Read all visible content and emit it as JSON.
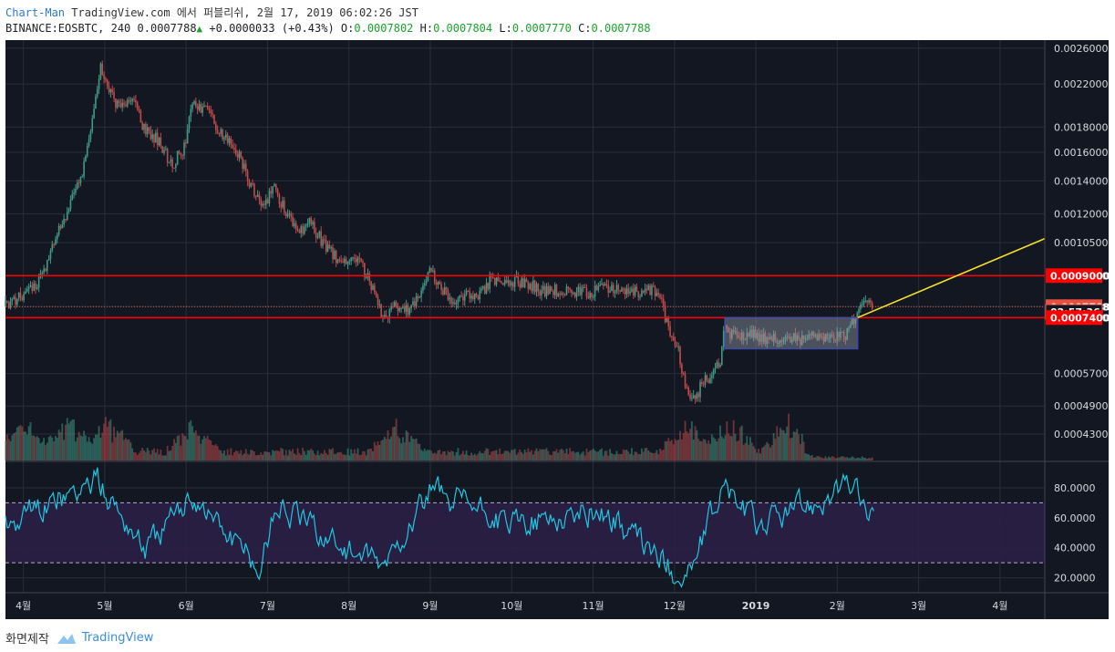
{
  "header": {
    "author": "Chart-Man",
    "published_text": "TradingView.com 에서 퍼블리쉬, 2월 17, 2019 06:02:26 JST",
    "symbol": "BINANCE:EOSBTC, 240",
    "last": "0.0007788",
    "change": "+0.0000033 (+0.43%)",
    "o_label": "O:",
    "o": "0.0007802",
    "h_label": "H:",
    "h": "0.0007804",
    "l_label": "L:",
    "l": "0.0007770",
    "c_label": "C:",
    "c": "0.0007788"
  },
  "footer": {
    "text": "화면제작",
    "brand": "TradingView"
  },
  "colors": {
    "background": "#131722",
    "grid": "#2a2e39",
    "up": "#3e9a85",
    "down": "#c14a4a",
    "resistance": "#ff0000",
    "trendline": "#f5e12a",
    "rsi": "#1fc7e0",
    "rsi_band": "#2b1f45",
    "box_fill": "#8f9aa6",
    "box_border": "#3d4ba8"
  },
  "chart_data": [
    {
      "type": "candlestick",
      "symbol": "BINANCE:EOSBTC",
      "interval": "240",
      "y_scale": "log",
      "y_ticks": [
        "0.0026000",
        "0.0022000",
        "0.0018000",
        "0.0016000",
        "0.0014000",
        "0.0012000",
        "0.0010500",
        "0.0009000",
        "0.0007788",
        "0.0007400",
        "0.0005700",
        "0.0004900",
        "0.0004300"
      ],
      "ylim": [
        0.00038,
        0.0027
      ],
      "x_ticks": [
        {
          "label": "4월",
          "t": 0.0
        },
        {
          "label": "5월",
          "t": 1.0
        },
        {
          "label": "6월",
          "t": 2.0
        },
        {
          "label": "7월",
          "t": 3.0
        },
        {
          "label": "8월",
          "t": 4.0
        },
        {
          "label": "9월",
          "t": 5.0
        },
        {
          "label": "10월",
          "t": 6.0
        },
        {
          "label": "11월",
          "t": 7.0
        },
        {
          "label": "12월",
          "t": 8.0
        },
        {
          "label": "2019",
          "t": 9.0,
          "bold": true
        },
        {
          "label": "2월",
          "t": 10.0
        },
        {
          "label": "3월",
          "t": 11.0
        },
        {
          "label": "4월",
          "t": 12.0
        }
      ],
      "xlim": [
        -0.22,
        12.55
      ],
      "price_path": [
        [
          -0.22,
          0.00078
        ],
        [
          0.0,
          0.00082
        ],
        [
          0.15,
          0.00085
        ],
        [
          0.3,
          0.00094
        ],
        [
          0.45,
          0.0011
        ],
        [
          0.6,
          0.00125
        ],
        [
          0.75,
          0.00145
        ],
        [
          0.9,
          0.002
        ],
        [
          0.97,
          0.0024
        ],
        [
          1.05,
          0.00215
        ],
        [
          1.2,
          0.00195
        ],
        [
          1.35,
          0.00205
        ],
        [
          1.5,
          0.0018
        ],
        [
          1.7,
          0.00168
        ],
        [
          1.85,
          0.0015
        ],
        [
          2.0,
          0.00165
        ],
        [
          2.1,
          0.002
        ],
        [
          2.25,
          0.00195
        ],
        [
          2.45,
          0.00175
        ],
        [
          2.65,
          0.0016
        ],
        [
          2.8,
          0.0014
        ],
        [
          2.95,
          0.00125
        ],
        [
          3.1,
          0.00135
        ],
        [
          3.25,
          0.0012
        ],
        [
          3.4,
          0.0011
        ],
        [
          3.55,
          0.00115
        ],
        [
          3.7,
          0.00105
        ],
        [
          3.85,
          0.00098
        ],
        [
          4.0,
          0.00095
        ],
        [
          4.15,
          0.00097
        ],
        [
          4.3,
          0.00085
        ],
        [
          4.45,
          0.00074
        ],
        [
          4.6,
          0.00078
        ],
        [
          4.75,
          0.00077
        ],
        [
          4.9,
          0.00082
        ],
        [
          5.0,
          0.00092
        ],
        [
          5.15,
          0.00085
        ],
        [
          5.3,
          0.0008
        ],
        [
          5.45,
          0.00083
        ],
        [
          5.6,
          0.0008
        ],
        [
          5.75,
          0.00088
        ],
        [
          5.9,
          0.00087
        ],
        [
          6.05,
          0.00088
        ],
        [
          6.2,
          0.00087
        ],
        [
          6.4,
          0.00084
        ],
        [
          6.6,
          0.00084
        ],
        [
          6.8,
          0.00084
        ],
        [
          7.0,
          0.00083
        ],
        [
          7.15,
          0.00086
        ],
        [
          7.3,
          0.00084
        ],
        [
          7.5,
          0.00083
        ],
        [
          7.7,
          0.00085
        ],
        [
          7.85,
          0.0008
        ],
        [
          7.95,
          0.0007
        ],
        [
          8.05,
          0.00065
        ],
        [
          8.15,
          0.00055
        ],
        [
          8.25,
          0.0005
        ],
        [
          8.35,
          0.00054
        ],
        [
          8.5,
          0.00057
        ],
        [
          8.58,
          0.0006
        ],
        [
          8.62,
          0.0007
        ],
        [
          8.75,
          0.00068
        ],
        [
          8.95,
          0.00069
        ],
        [
          9.15,
          0.00067
        ],
        [
          9.35,
          0.00068
        ],
        [
          9.55,
          0.00067
        ],
        [
          9.75,
          0.00068
        ],
        [
          9.95,
          0.00067
        ],
        [
          10.15,
          0.00069
        ],
        [
          10.25,
          0.00074
        ],
        [
          10.35,
          0.00079
        ],
        [
          10.45,
          0.00078
        ]
      ],
      "levels": [
        {
          "name": "resistance",
          "value": 0.0009
        },
        {
          "name": "support",
          "value": 0.00074
        },
        {
          "name": "last",
          "value": 0.0007788,
          "style": "dotted"
        }
      ],
      "price_labels": [
        {
          "text": "0.0009000",
          "value": 0.0009
        },
        {
          "text": "0.0007788",
          "value": 0.0007788
        },
        {
          "text": "02:57:36",
          "value": 0.00076
        },
        {
          "text": "0.0007400",
          "value": 0.00074
        }
      ],
      "range_box": {
        "t0": 8.62,
        "t1": 10.25,
        "p_low": 0.00064,
        "p_high": 0.00074
      },
      "trendline": {
        "t0": 10.25,
        "p0": 0.00074,
        "t1": 12.55,
        "p1": 0.00107
      },
      "volume_profile": {
        "peak_t": [
          0.0,
          0.55,
          1.05,
          2.1,
          4.6,
          8.15,
          8.7,
          9.4
        ]
      }
    },
    {
      "type": "line",
      "name": "RSI",
      "y_ticks": [
        "80.0000",
        "60.0000",
        "40.0000",
        "20.0000"
      ],
      "ylim": [
        10,
        97
      ],
      "band": [
        30,
        70
      ],
      "midline": 50,
      "samples": 510,
      "seed": 41,
      "end_t": 10.45,
      "anchors": [
        [
          -0.22,
          55
        ],
        [
          0.9,
          85
        ],
        [
          1.5,
          40
        ],
        [
          2.1,
          75
        ],
        [
          2.9,
          25
        ],
        [
          3.1,
          70
        ],
        [
          4.4,
          25
        ],
        [
          5.0,
          78
        ],
        [
          6.0,
          55
        ],
        [
          7.1,
          65
        ],
        [
          8.1,
          20
        ],
        [
          8.25,
          30
        ],
        [
          8.6,
          82
        ],
        [
          9.0,
          55
        ],
        [
          10.2,
          82
        ],
        [
          10.45,
          55
        ]
      ]
    }
  ]
}
